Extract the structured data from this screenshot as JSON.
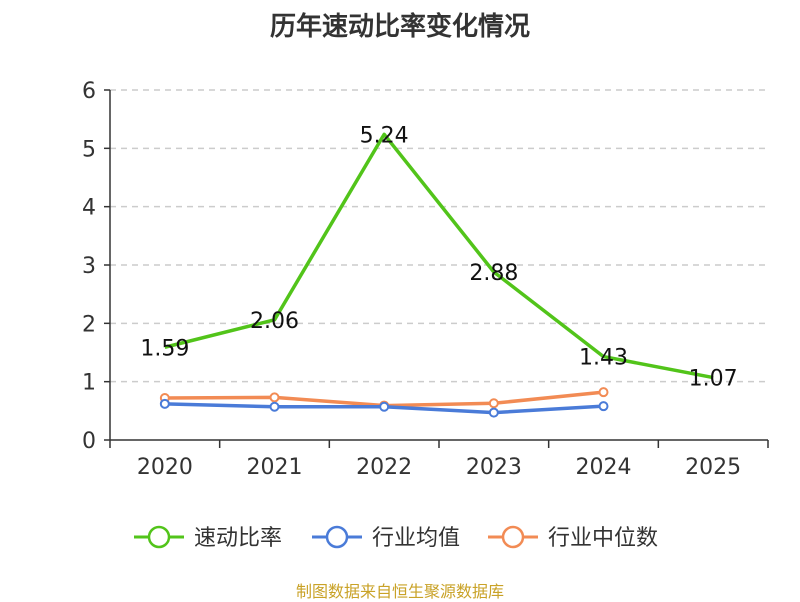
{
  "chart_data": {
    "type": "line",
    "title": "历年速动比率变化情况",
    "categories": [
      "2020",
      "2021",
      "2022",
      "2023",
      "2024",
      "2025"
    ],
    "ylim": [
      0,
      6
    ],
    "yticks": [
      0,
      1,
      2,
      3,
      4,
      5,
      6
    ],
    "grid": true,
    "legend_position": "bottom",
    "series": [
      {
        "name": "速动比率",
        "color": "#52c41a",
        "values": [
          1.59,
          2.06,
          5.24,
          2.88,
          1.43,
          1.07
        ],
        "labels": [
          "1.59",
          "2.06",
          "5.24",
          "2.88",
          "1.43",
          "1.07"
        ],
        "show_labels": true
      },
      {
        "name": "行业均值",
        "color": "#4a7bd8",
        "values": [
          0.62,
          0.57,
          0.57,
          0.47,
          0.58,
          null
        ],
        "show_labels": false
      },
      {
        "name": "行业中位数",
        "color": "#f28b54",
        "values": [
          0.72,
          0.73,
          0.59,
          0.63,
          0.82,
          null
        ],
        "show_labels": false
      }
    ]
  },
  "source_note": "制图数据来自恒生聚源数据库"
}
